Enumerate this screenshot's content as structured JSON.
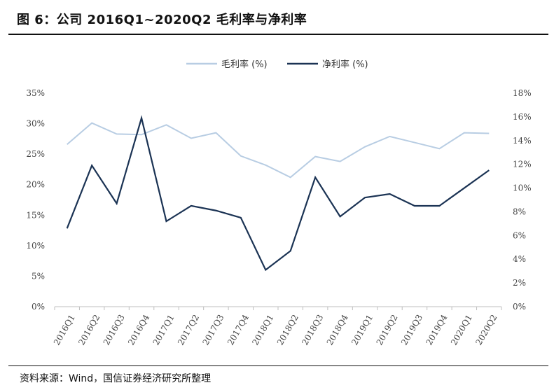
{
  "header": {
    "title": "图 6：公司 2016Q1~2020Q2 毛利率与净利率"
  },
  "footer": {
    "source": "资料来源：Wind，国信证券经济研究所整理"
  },
  "colors": {
    "gross": "#b8cde3",
    "net": "#1b3354"
  },
  "chart_data": {
    "type": "line",
    "categories": [
      "2016Q1",
      "2016Q2",
      "2016Q3",
      "2016Q4",
      "2017Q1",
      "2017Q2",
      "2017Q3",
      "2017Q4",
      "2018Q1",
      "2018Q2",
      "2018Q3",
      "2018Q4",
      "2019Q1",
      "2019Q2",
      "2019Q3",
      "2019Q4",
      "2020Q1",
      "2020Q2"
    ],
    "legend_position": "top",
    "grid": false,
    "series": [
      {
        "name": "毛利率 (%)",
        "axis": "left",
        "values": [
          26.6,
          30.1,
          28.3,
          28.2,
          29.8,
          27.6,
          28.5,
          24.7,
          23.2,
          21.2,
          24.6,
          23.8,
          26.2,
          27.9,
          26.9,
          25.9,
          28.5,
          28.4
        ]
      },
      {
        "name": "净利率 (%)",
        "axis": "right",
        "values": [
          6.6,
          11.9,
          8.7,
          15.9,
          7.2,
          8.5,
          8.1,
          7.5,
          3.1,
          4.7,
          10.9,
          7.6,
          9.2,
          9.5,
          8.5,
          8.5,
          10.0,
          11.5
        ]
      }
    ],
    "y_left": {
      "ylim": [
        0,
        35
      ],
      "ticks": [
        0,
        5,
        10,
        15,
        20,
        25,
        30,
        35
      ],
      "tick_labels": [
        "0%",
        "5%",
        "10%",
        "15%",
        "20%",
        "25%",
        "30%",
        "35%"
      ]
    },
    "y_right": {
      "ylim": [
        0,
        18
      ],
      "ticks": [
        0,
        2,
        4,
        6,
        8,
        10,
        12,
        14,
        16,
        18
      ],
      "tick_labels": [
        "0%",
        "2%",
        "4%",
        "6%",
        "8%",
        "10%",
        "12%",
        "14%",
        "16%",
        "18%"
      ]
    }
  }
}
